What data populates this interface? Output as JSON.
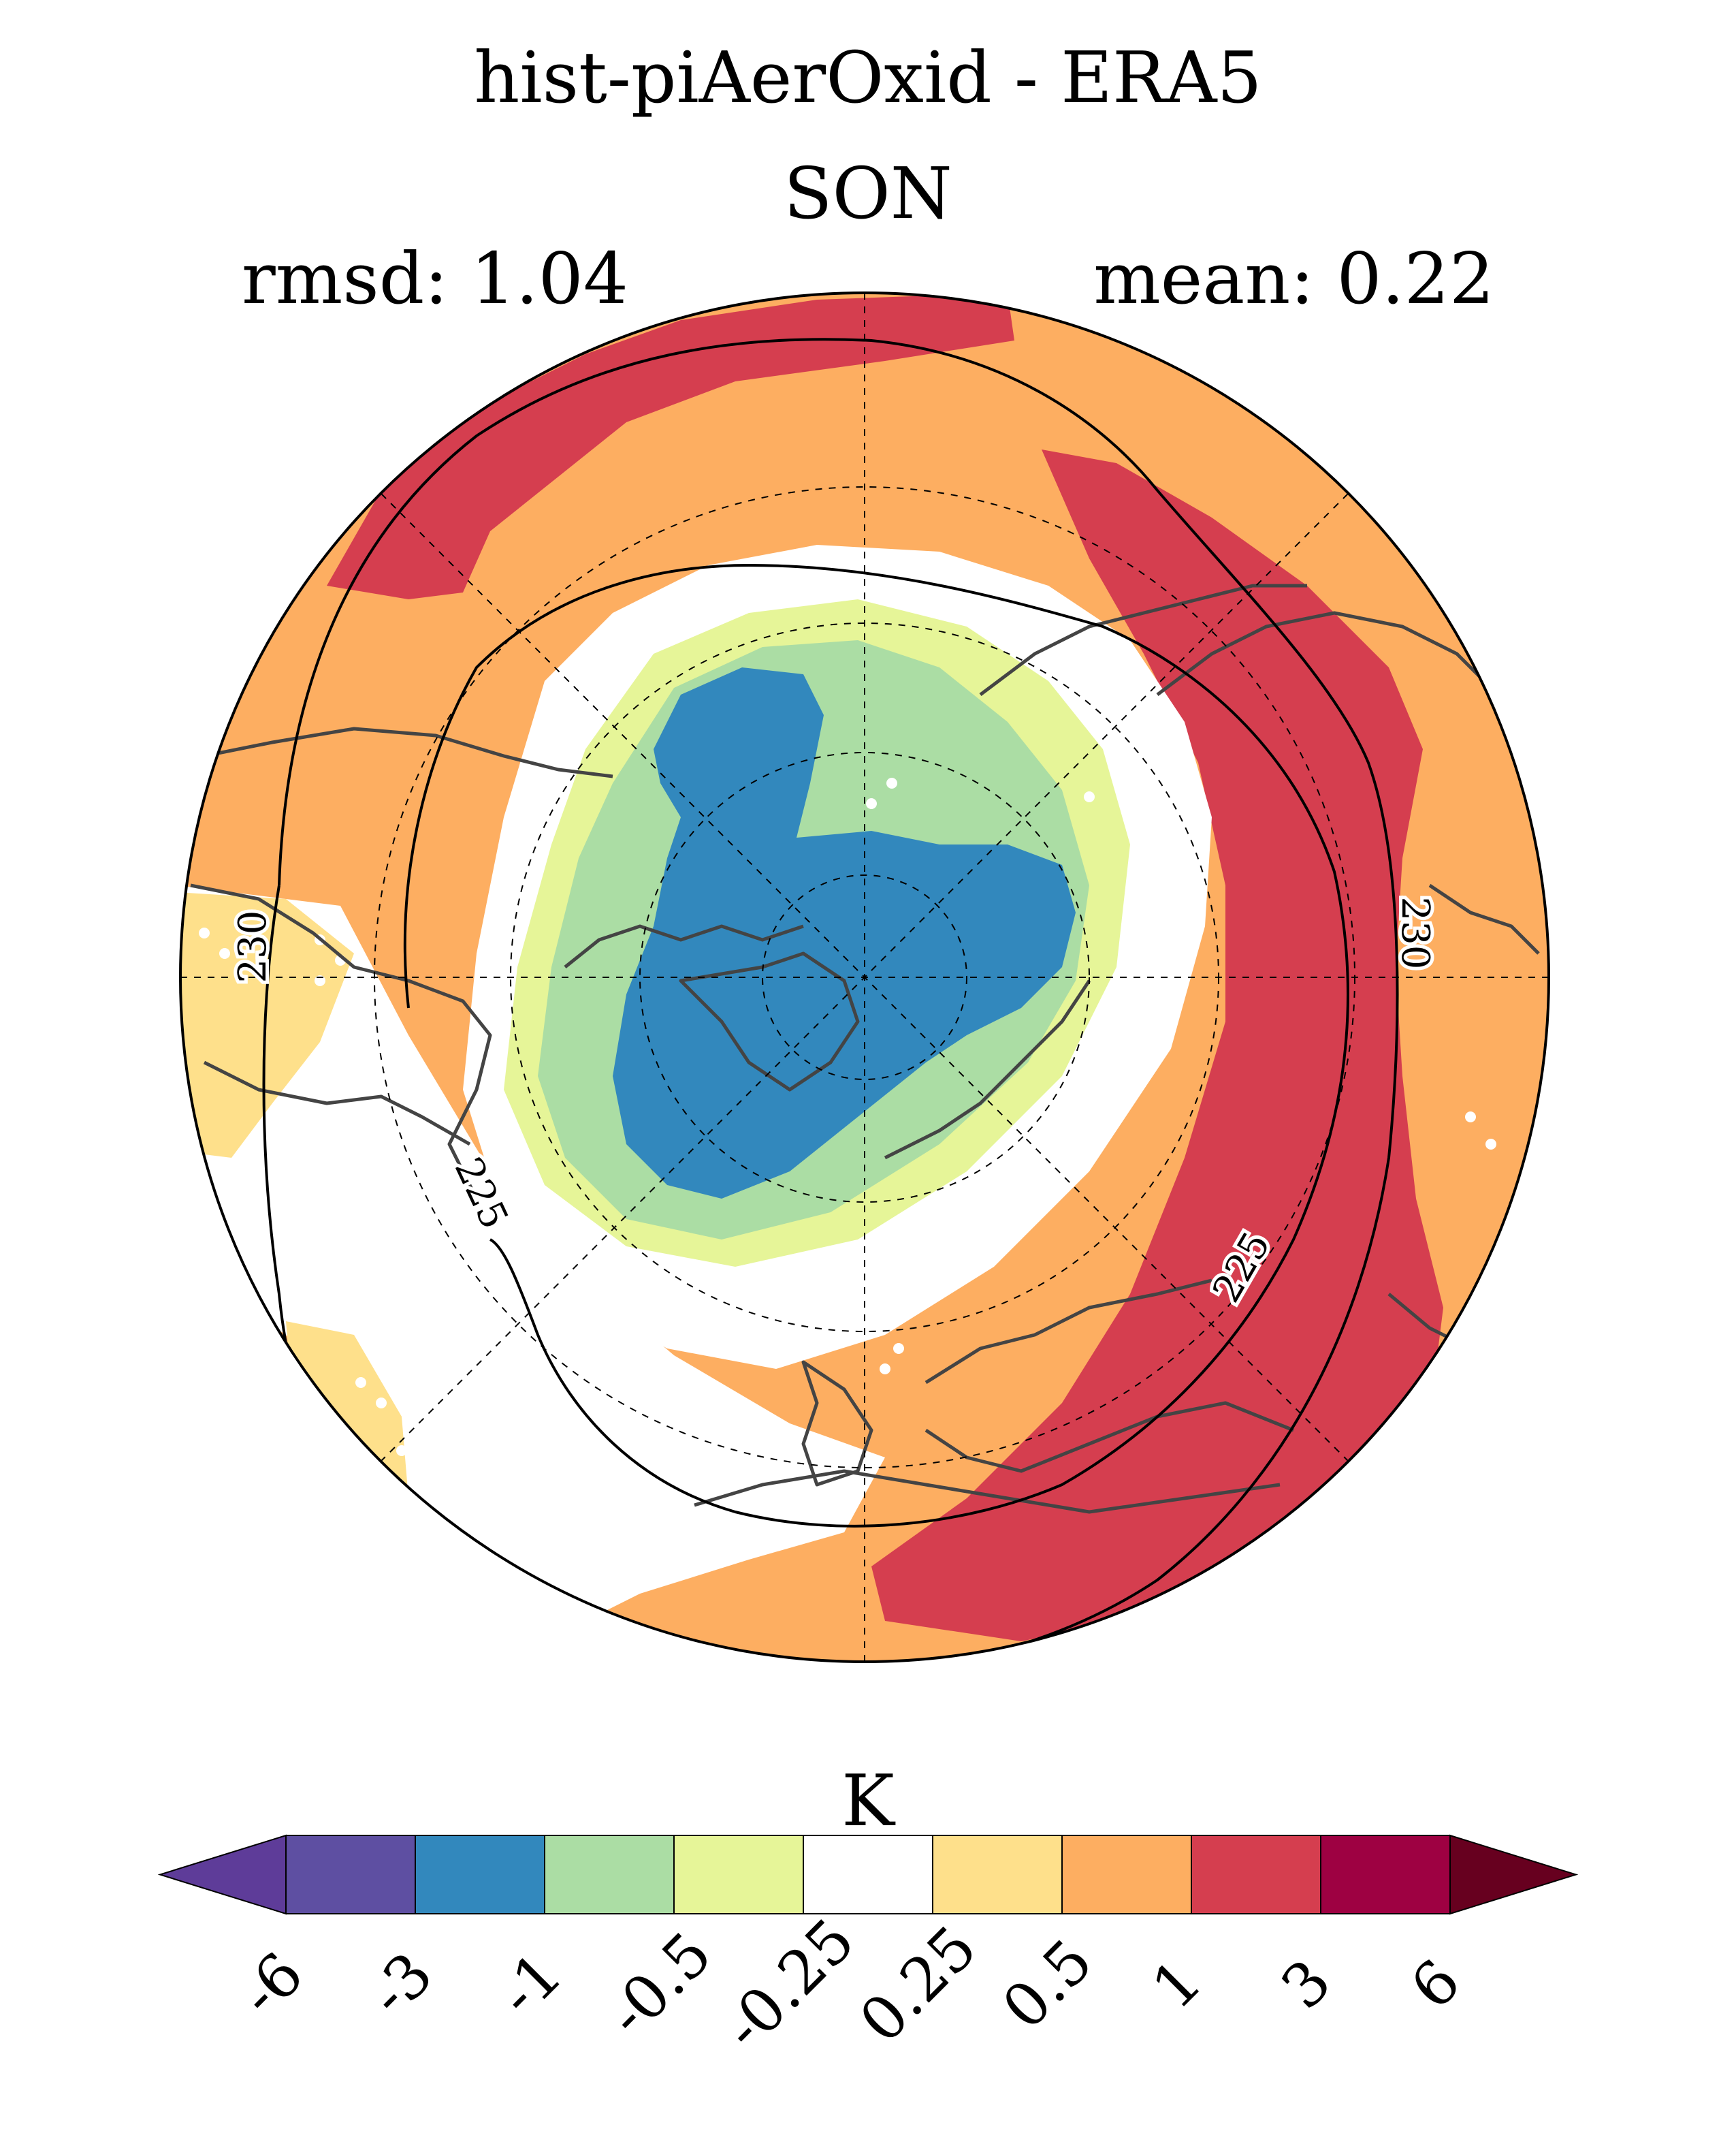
{
  "figure": {
    "title": "hist-piAerOxid - ERA5",
    "season": "SON",
    "rmsd_label": "rmsd: 1.04",
    "mean_label": "mean: 0.22",
    "rmsd": 1.04,
    "mean": 0.22,
    "units": "K",
    "projection": "north polar stereographic"
  },
  "colorbar": {
    "units": "K",
    "levels": [
      "-6",
      "-3",
      "-1",
      "-0.5",
      "-0.25",
      "0.25",
      "0.5",
      "1",
      "3",
      "6"
    ],
    "colors": [
      "#5e3c99",
      "#5e4fa2",
      "#3288bd",
      "#abdda4",
      "#e6f598",
      "#ffffff",
      "#fee08b",
      "#fdae61",
      "#d53e4f",
      "#9e0142",
      "#67001f"
    ],
    "extend": "both"
  },
  "contours": {
    "labels": [
      "230",
      "230",
      "225",
      "225"
    ]
  },
  "palette": {
    "ocean_bg": "#fdae61",
    "strong_pos": "#d53e4f",
    "weak_pos": "#fee08b",
    "neutral": "#ffffff",
    "weak_neg": "#e6f598",
    "mid_neg": "#abdda4",
    "strong_neg": "#3288bd",
    "coast": "#444444"
  }
}
